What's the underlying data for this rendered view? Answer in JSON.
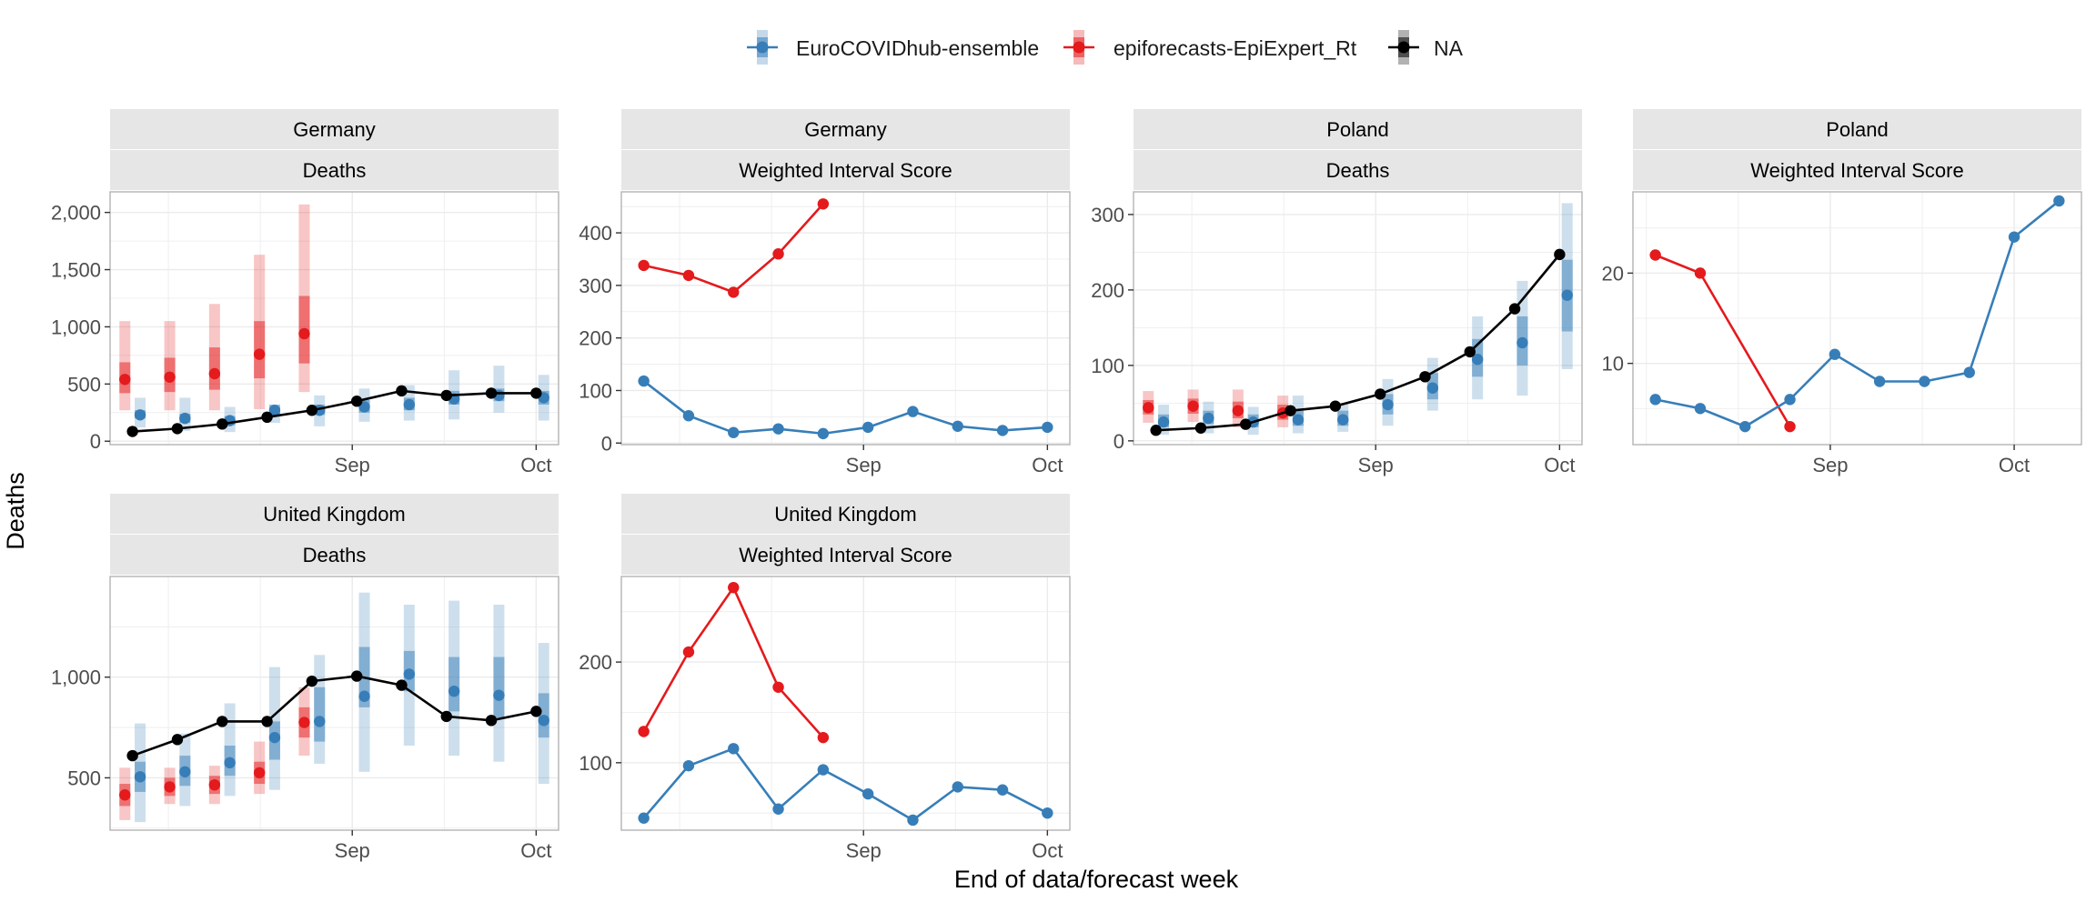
{
  "figure": {
    "ylabel": "Deaths",
    "xlabel": "End of data/forecast week",
    "legend": {
      "placement": "top-center",
      "entries": [
        {
          "name": "EuroCOVIDhub-ensemble",
          "color": "#377EB8"
        },
        {
          "name": "epiforecasts-EpiExpert_Rt",
          "color": "#E41A1C"
        },
        {
          "name": "NA",
          "color": "#000000"
        }
      ]
    }
  },
  "chart_data": [
    {
      "type": "line",
      "strip": [
        "Germany",
        "Deaths"
      ],
      "x_ticks": [
        {
          "label": "Sep",
          "x": 5.9
        },
        {
          "label": "Oct",
          "x": 10.0
        }
      ],
      "xlim": [
        0.5,
        10.5
      ],
      "ylim": [
        -30,
        2180
      ],
      "y_ticks": [
        {
          "value": 0,
          "label": "0"
        },
        {
          "value": 500,
          "label": "500"
        },
        {
          "value": 1000,
          "label": "1,000"
        },
        {
          "value": 1500,
          "label": "1,500"
        },
        {
          "value": 2000,
          "label": "2,000"
        }
      ],
      "series": [
        {
          "color": "#E41A1C",
          "line": false,
          "x": [
            1,
            2,
            3,
            4,
            5
          ],
          "y": [
            540,
            560,
            590,
            760,
            940
          ],
          "lo50": [
            420,
            430,
            450,
            550,
            680
          ],
          "hi50": [
            690,
            730,
            820,
            1050,
            1270
          ],
          "lo90": [
            270,
            270,
            270,
            280,
            430
          ],
          "hi90": [
            1050,
            1050,
            1200,
            1630,
            2070
          ]
        },
        {
          "color": "#377EB8",
          "line": false,
          "x": [
            1,
            2,
            3,
            4,
            5,
            6,
            7,
            8,
            9,
            10
          ],
          "y": [
            230,
            200,
            180,
            270,
            270,
            300,
            320,
            370,
            400,
            380
          ],
          "lo50": [
            200,
            160,
            140,
            220,
            230,
            250,
            270,
            320,
            350,
            320
          ],
          "hi50": [
            270,
            240,
            220,
            320,
            320,
            360,
            380,
            440,
            460,
            440
          ],
          "lo90": [
            120,
            90,
            80,
            160,
            130,
            170,
            180,
            190,
            250,
            180
          ],
          "hi90": [
            380,
            380,
            300,
            300,
            400,
            460,
            490,
            620,
            660,
            580
          ]
        },
        {
          "color": "#000000",
          "line": true,
          "x": [
            1,
            2,
            3,
            4,
            5,
            6,
            7,
            8,
            9,
            10
          ],
          "y": [
            85,
            110,
            150,
            210,
            270,
            350,
            440,
            400,
            420,
            420
          ]
        }
      ]
    },
    {
      "type": "line",
      "strip": [
        "Germany",
        "Weighted Interval Score"
      ],
      "x_ticks": [
        {
          "label": "Sep",
          "x": 5.9
        },
        {
          "label": "Oct",
          "x": 10.0
        }
      ],
      "xlim": [
        0.5,
        10.5
      ],
      "ylim": [
        -3,
        478
      ],
      "y_ticks": [
        {
          "value": 0,
          "label": "0"
        },
        {
          "value": 100,
          "label": "100"
        },
        {
          "value": 200,
          "label": "200"
        },
        {
          "value": 300,
          "label": "300"
        },
        {
          "value": 400,
          "label": "400"
        }
      ],
      "series": [
        {
          "color": "#E41A1C",
          "line": true,
          "x": [
            1,
            2,
            3,
            4,
            5
          ],
          "y": [
            338,
            319,
            287,
            360,
            455
          ]
        },
        {
          "color": "#377EB8",
          "line": true,
          "x": [
            1,
            2,
            3,
            4,
            5,
            6,
            7,
            8,
            9,
            10
          ],
          "y": [
            118,
            52,
            20,
            27,
            18,
            30,
            60,
            32,
            24,
            30
          ]
        }
      ]
    },
    {
      "type": "line",
      "strip": [
        "Poland",
        "Deaths"
      ],
      "x_ticks": [
        {
          "label": "Sep",
          "x": 5.9
        },
        {
          "label": "Oct",
          "x": 10.0
        }
      ],
      "xlim": [
        0.5,
        10.5
      ],
      "ylim": [
        -5,
        330
      ],
      "y_ticks": [
        {
          "value": 0,
          "label": "0"
        },
        {
          "value": 100,
          "label": "100"
        },
        {
          "value": 200,
          "label": "200"
        },
        {
          "value": 300,
          "label": "300"
        }
      ],
      "series": [
        {
          "color": "#E41A1C",
          "line": false,
          "x": [
            1,
            2,
            3,
            4
          ],
          "y": [
            44,
            46,
            40,
            37
          ],
          "lo50": [
            35,
            36,
            30,
            28
          ],
          "hi50": [
            54,
            56,
            52,
            48
          ],
          "lo90": [
            24,
            25,
            18,
            18
          ],
          "hi90": [
            66,
            68,
            68,
            60
          ]
        },
        {
          "color": "#377EB8",
          "line": false,
          "x": [
            1,
            2,
            3,
            4,
            5,
            6,
            7,
            8,
            9,
            10
          ],
          "y": [
            25,
            30,
            25,
            28,
            28,
            48,
            70,
            108,
            130,
            193
          ],
          "lo50": [
            18,
            22,
            18,
            20,
            20,
            35,
            55,
            85,
            100,
            145
          ],
          "hi50": [
            35,
            40,
            35,
            40,
            40,
            62,
            90,
            135,
            165,
            240
          ],
          "lo90": [
            8,
            10,
            8,
            10,
            12,
            20,
            40,
            55,
            60,
            95
          ],
          "hi90": [
            48,
            52,
            45,
            60,
            50,
            82,
            110,
            165,
            212,
            315
          ]
        },
        {
          "color": "#000000",
          "line": true,
          "x": [
            1,
            2,
            3,
            4,
            5,
            6,
            7,
            8,
            9,
            10
          ],
          "y": [
            14,
            17,
            22,
            40,
            46,
            62,
            85,
            118,
            175,
            247
          ]
        }
      ]
    },
    {
      "type": "line",
      "strip": [
        "Poland",
        "Weighted Interval Score"
      ],
      "x_ticks": [
        {
          "label": "Sep",
          "x": 4.9
        },
        {
          "label": "Oct",
          "x": 9.0
        }
      ],
      "xlim": [
        0.5,
        10.5
      ],
      "ylim": [
        1,
        29
      ],
      "y_ticks": [
        {
          "value": 10,
          "label": "10"
        },
        {
          "value": 20,
          "label": "20"
        }
      ],
      "series": [
        {
          "color": "#E41A1C",
          "line": true,
          "x": [
            1,
            2,
            4
          ],
          "y": [
            22,
            20,
            3
          ]
        },
        {
          "color": "#377EB8",
          "line": true,
          "x": [
            1,
            2,
            3,
            4,
            5,
            6,
            7,
            8,
            9,
            10
          ],
          "y": [
            6,
            5,
            3,
            6,
            11,
            8,
            8,
            9,
            24,
            28
          ]
        }
      ]
    },
    {
      "type": "line",
      "strip": [
        "United Kingdom",
        "Deaths"
      ],
      "x_ticks": [
        {
          "label": "Sep",
          "x": 5.9
        },
        {
          "label": "Oct",
          "x": 10.0
        }
      ],
      "xlim": [
        0.5,
        10.5
      ],
      "ylim": [
        240,
        1500
      ],
      "y_ticks": [
        {
          "value": 500,
          "label": "500"
        },
        {
          "value": 1000,
          "label": "1,000"
        }
      ],
      "series": [
        {
          "color": "#E41A1C",
          "line": false,
          "x": [
            1,
            2,
            3,
            4,
            5
          ],
          "y": [
            415,
            455,
            465,
            525,
            775
          ],
          "lo50": [
            360,
            410,
            420,
            470,
            700
          ],
          "hi50": [
            470,
            500,
            510,
            580,
            850
          ],
          "lo90": [
            290,
            370,
            370,
            420,
            610
          ],
          "hi90": [
            550,
            550,
            560,
            680,
            950
          ]
        },
        {
          "color": "#377EB8",
          "line": false,
          "x": [
            1,
            2,
            3,
            4,
            5,
            6,
            7,
            8,
            9,
            10
          ],
          "y": [
            505,
            530,
            575,
            700,
            780,
            905,
            1015,
            930,
            910,
            785
          ],
          "lo50": [
            430,
            460,
            510,
            590,
            680,
            850,
            930,
            830,
            800,
            700
          ],
          "hi50": [
            580,
            610,
            660,
            780,
            950,
            1150,
            1130,
            1100,
            1100,
            920
          ],
          "lo90": [
            280,
            360,
            410,
            440,
            570,
            530,
            660,
            610,
            580,
            470
          ],
          "hi90": [
            770,
            720,
            870,
            1050,
            1110,
            1420,
            1360,
            1380,
            1360,
            1170
          ]
        },
        {
          "color": "#000000",
          "line": true,
          "x": [
            1,
            2,
            3,
            4,
            5,
            6,
            7,
            8,
            9,
            10
          ],
          "y": [
            610,
            690,
            780,
            780,
            980,
            1005,
            960,
            805,
            785,
            830
          ]
        }
      ]
    },
    {
      "type": "line",
      "strip": [
        "United Kingdom",
        "Weighted Interval Score"
      ],
      "x_ticks": [
        {
          "label": "Sep",
          "x": 5.9
        },
        {
          "label": "Oct",
          "x": 10.0
        }
      ],
      "xlim": [
        0.5,
        10.5
      ],
      "ylim": [
        33,
        285
      ],
      "y_ticks": [
        {
          "value": 100,
          "label": "100"
        },
        {
          "value": 200,
          "label": "200"
        }
      ],
      "series": [
        {
          "color": "#E41A1C",
          "line": true,
          "x": [
            1,
            2,
            3,
            4,
            5
          ],
          "y": [
            131,
            210,
            274,
            175,
            125
          ]
        },
        {
          "color": "#377EB8",
          "line": true,
          "x": [
            1,
            2,
            3,
            4,
            5,
            6,
            7,
            8,
            9,
            10
          ],
          "y": [
            45,
            97,
            114,
            54,
            93,
            69,
            43,
            76,
            73,
            50
          ]
        }
      ]
    }
  ]
}
